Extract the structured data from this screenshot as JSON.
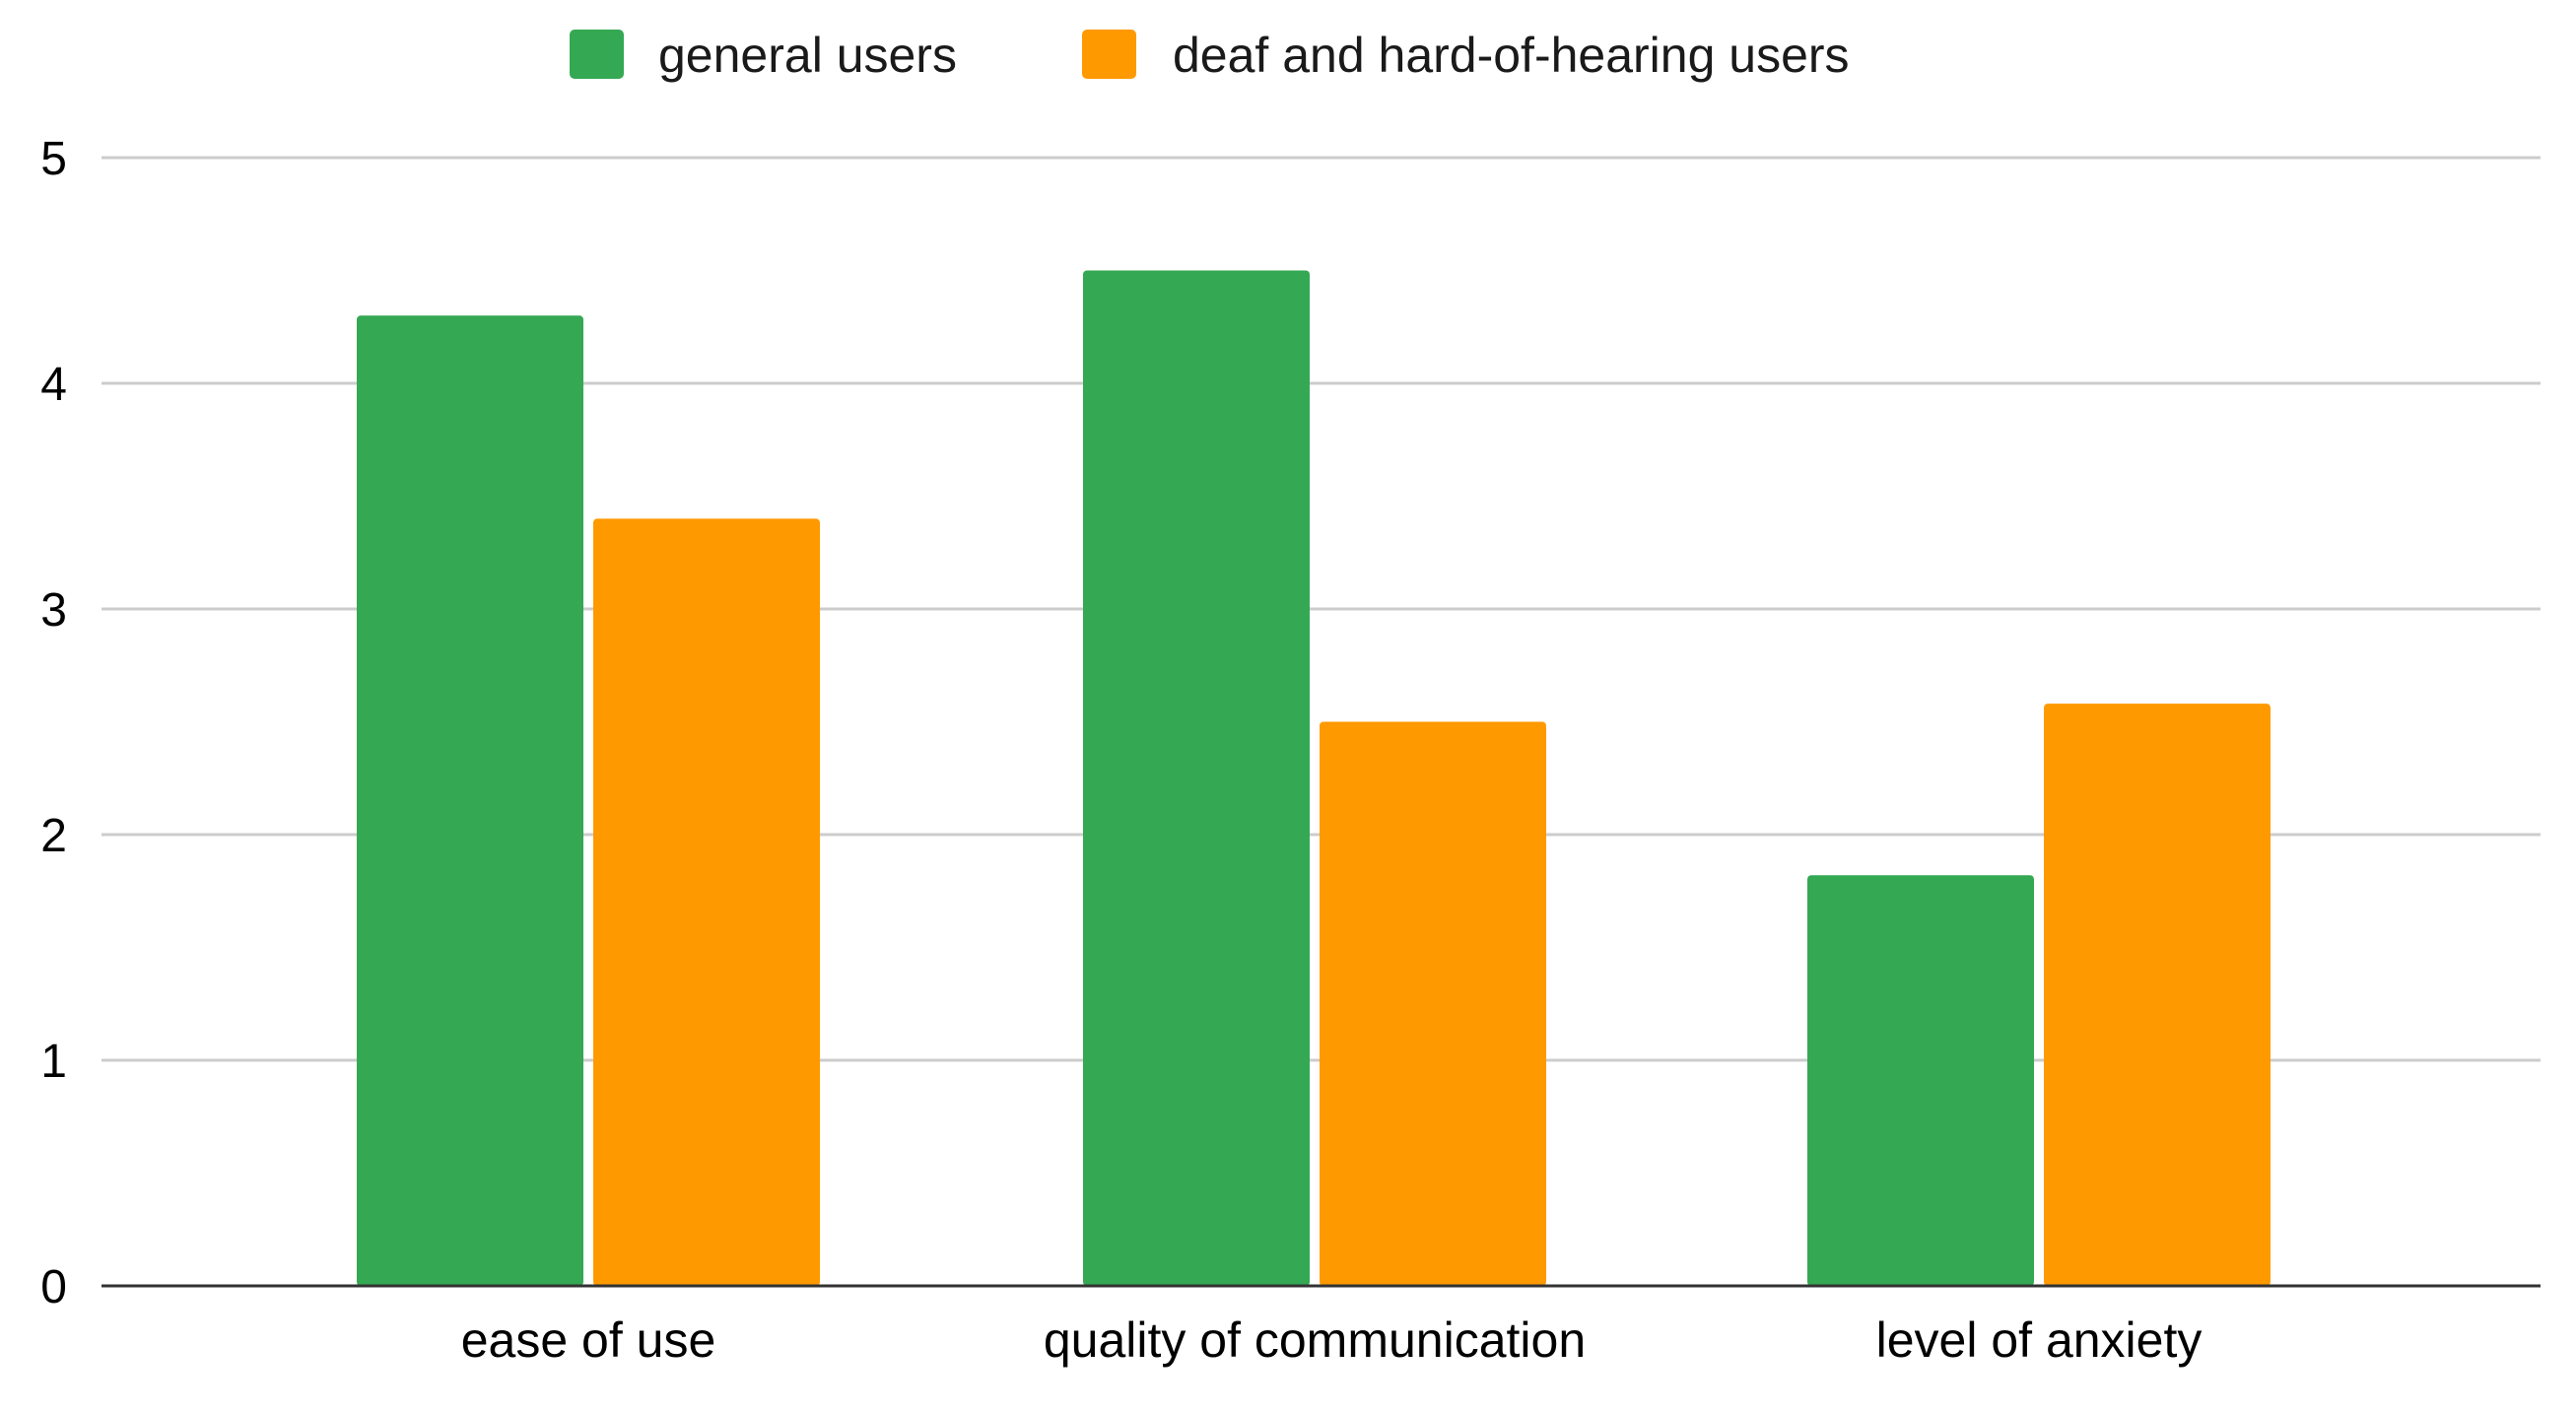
{
  "chart_data": {
    "type": "bar",
    "title": "",
    "xlabel": "",
    "ylabel": "",
    "categories": [
      "ease of use",
      "quality of communication",
      "level of anxiety"
    ],
    "series": [
      {
        "name": "general users",
        "color": "#34a853",
        "values": [
          4.3,
          4.5,
          1.82
        ]
      },
      {
        "name": "deaf and hard-of-hearing users",
        "color": "#ff9900",
        "values": [
          3.4,
          2.5,
          2.58
        ]
      }
    ],
    "ylim": [
      0,
      5
    ],
    "yticks": [
      0,
      1,
      2,
      3,
      4,
      5
    ],
    "grid": true,
    "legend_position": "top-center"
  }
}
